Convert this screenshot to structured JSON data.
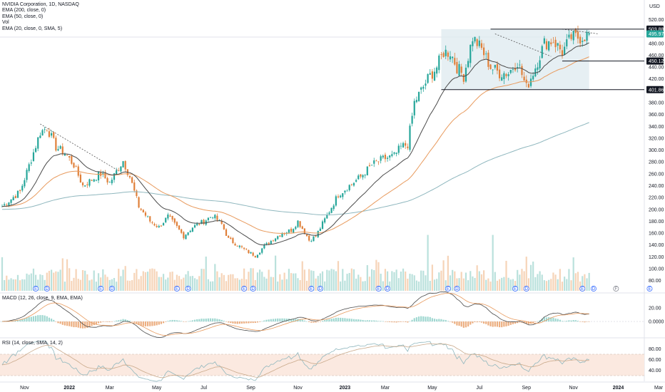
{
  "legend": {
    "title": "NVIDIA Corporation, 1D, NASDAQ",
    "lines": [
      "EMA (200, close, 0)",
      "EMA (50, close, 0)",
      "Vol",
      "EMA (20, close, 0, SMA, 5)"
    ]
  },
  "macd_label": "MACD (12, 26, close, 9, EMA, EMA)",
  "rsi_label": "RSI (14, close, SMA, 14, 2)",
  "currency": "USD",
  "colors": {
    "up": "#26a69a",
    "down": "#e0803a",
    "ema200": "#8fb7be",
    "ema50": "#e89a5d",
    "ema20": "#4a4a4a",
    "box": "#dde9ef",
    "rsi_band": "#fbe9e0",
    "text": "#131722"
  },
  "chart_data": [
    {
      "type": "candlestick",
      "title": "NVIDIA Corporation, 1D, NASDAQ",
      "x_labels": [
        "Nov",
        "2022",
        "Mar",
        "May",
        "Jul",
        "Sep",
        "Nov",
        "2023",
        "Mar",
        "May",
        "Jul",
        "Sep",
        "Nov",
        "2024",
        "Mar"
      ],
      "y_ticks": [
        80,
        100,
        120,
        140,
        160,
        180,
        200,
        220,
        240,
        260,
        280,
        300,
        320,
        340,
        360,
        380,
        400,
        420,
        440,
        460,
        480,
        500,
        520
      ],
      "ylim": [
        70,
        535
      ],
      "price_tags": [
        {
          "label": "503.88",
          "value": 503.88
        },
        {
          "label": "495.97",
          "value": 495.97
        },
        {
          "label": "450.12",
          "value": 450.12
        },
        {
          "label": "401.86",
          "value": 401.86
        }
      ],
      "anchors": [
        {
          "t": 0,
          "v": 205
        },
        {
          "t": 8,
          "v": 230
        },
        {
          "t": 13,
          "v": 285
        },
        {
          "t": 17,
          "v": 330
        },
        {
          "t": 20,
          "v": 338
        },
        {
          "t": 24,
          "v": 305
        },
        {
          "t": 28,
          "v": 295
        },
        {
          "t": 32,
          "v": 275
        },
        {
          "t": 36,
          "v": 240
        },
        {
          "t": 40,
          "v": 250
        },
        {
          "t": 44,
          "v": 260
        },
        {
          "t": 48,
          "v": 245
        },
        {
          "t": 52,
          "v": 270
        },
        {
          "t": 54,
          "v": 282
        },
        {
          "t": 57,
          "v": 255
        },
        {
          "t": 61,
          "v": 205
        },
        {
          "t": 66,
          "v": 180
        },
        {
          "t": 70,
          "v": 170
        },
        {
          "t": 74,
          "v": 188
        },
        {
          "t": 78,
          "v": 170
        },
        {
          "t": 81,
          "v": 155
        },
        {
          "t": 85,
          "v": 170
        },
        {
          "t": 90,
          "v": 180
        },
        {
          "t": 94,
          "v": 190
        },
        {
          "t": 98,
          "v": 175
        },
        {
          "t": 101,
          "v": 150
        },
        {
          "t": 105,
          "v": 140
        },
        {
          "t": 109,
          "v": 130
        },
        {
          "t": 113,
          "v": 122
        },
        {
          "t": 117,
          "v": 138
        },
        {
          "t": 121,
          "v": 150
        },
        {
          "t": 125,
          "v": 160
        },
        {
          "t": 129,
          "v": 165
        },
        {
          "t": 132,
          "v": 180
        },
        {
          "t": 135,
          "v": 162
        },
        {
          "t": 137,
          "v": 148
        },
        {
          "t": 140,
          "v": 155
        },
        {
          "t": 145,
          "v": 190
        },
        {
          "t": 150,
          "v": 225
        },
        {
          "t": 155,
          "v": 240
        },
        {
          "t": 160,
          "v": 255
        },
        {
          "t": 165,
          "v": 275
        },
        {
          "t": 170,
          "v": 285
        },
        {
          "t": 175,
          "v": 290
        },
        {
          "t": 178,
          "v": 305
        },
        {
          "t": 181,
          "v": 310
        },
        {
          "t": 184,
          "v": 380
        },
        {
          "t": 187,
          "v": 400
        },
        {
          "t": 190,
          "v": 420
        },
        {
          "t": 194,
          "v": 440
        },
        {
          "t": 197,
          "v": 465
        },
        {
          "t": 200,
          "v": 465
        },
        {
          "t": 203,
          "v": 440
        },
        {
          "t": 206,
          "v": 425
        },
        {
          "t": 210,
          "v": 490
        },
        {
          "t": 214,
          "v": 470
        },
        {
          "t": 218,
          "v": 440
        },
        {
          "t": 222,
          "v": 430
        },
        {
          "t": 226,
          "v": 430
        },
        {
          "t": 230,
          "v": 450
        },
        {
          "t": 234,
          "v": 405
        },
        {
          "t": 238,
          "v": 440
        },
        {
          "t": 242,
          "v": 480
        },
        {
          "t": 246,
          "v": 485
        },
        {
          "t": 250,
          "v": 465
        },
        {
          "t": 254,
          "v": 490
        },
        {
          "t": 258,
          "v": 490
        },
        {
          "t": 262,
          "v": 495
        }
      ],
      "volume_ylim": [
        0,
        250
      ]
    },
    {
      "type": "line",
      "title": "MACD (12, 26, close, 9, EMA, EMA)",
      "y_ticks": [
        20,
        0
      ],
      "y_labels": [
        "20.00",
        "0.0000"
      ],
      "ylim": [
        -20,
        35
      ]
    },
    {
      "type": "line",
      "title": "RSI (14, close, SMA, 14, 2)",
      "y_ticks": [
        80,
        60,
        40
      ],
      "y_labels": [
        "80.00",
        "60.00",
        "40.00"
      ],
      "ylim": [
        22,
        90
      ],
      "bands": [
        30,
        70
      ]
    }
  ]
}
